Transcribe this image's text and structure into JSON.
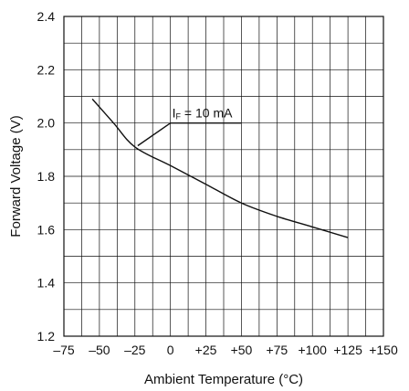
{
  "chart_data": {
    "type": "line",
    "title": "",
    "xlabel": "Ambient Temperature (°C)",
    "ylabel": "Forward Voltage (V)",
    "xlim": [
      -75,
      150
    ],
    "ylim": [
      1.2,
      2.4
    ],
    "grid": true,
    "x_tick_labels": [
      "–75",
      "–50",
      "–25",
      "0",
      "+25",
      "+50",
      "+75",
      "+100",
      "+125",
      "+150"
    ],
    "y_tick_labels": [
      "1.2",
      "1.4",
      "1.6",
      "1.8",
      "2.0",
      "2.2",
      "2.4"
    ],
    "annotation": {
      "prefix": "I",
      "sub": "F",
      "suffix": " = 10 mA"
    },
    "series": [
      {
        "x": [
          -55,
          -40,
          -25,
          0,
          25,
          50,
          75,
          100,
          125
        ],
        "y": [
          2.09,
          2.0,
          1.91,
          1.84,
          1.77,
          1.7,
          1.65,
          1.61,
          1.57
        ]
      }
    ]
  }
}
